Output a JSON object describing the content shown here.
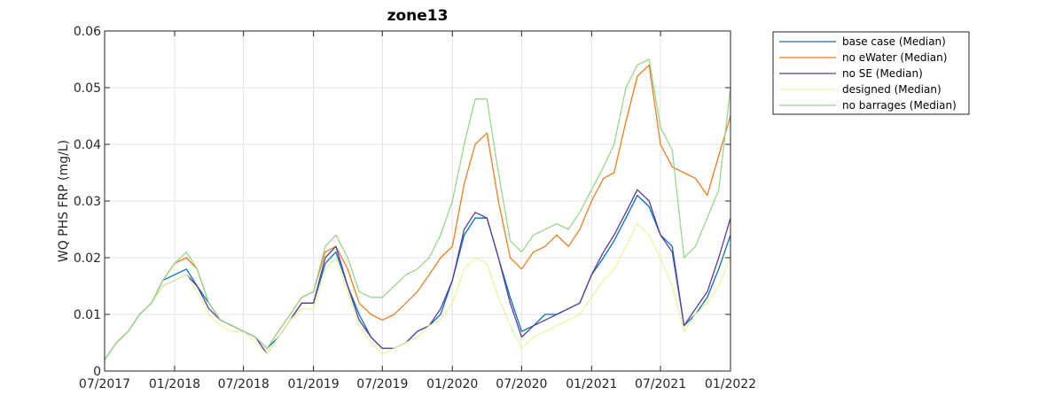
{
  "chart_data": {
    "type": "line",
    "title": "zone13",
    "xlabel": "",
    "ylabel": "WQ PHS FRP (mg/L)",
    "ylim": [
      0,
      0.06
    ],
    "yticks": [
      0,
      0.01,
      0.02,
      0.03,
      0.04,
      0.05,
      0.06
    ],
    "ytick_labels": [
      "0",
      "0.01",
      "0.02",
      "0.03",
      "0.04",
      "0.05",
      "0.06"
    ],
    "xlim": [
      "2017-07-01",
      "2022-01-01"
    ],
    "xticks": [
      "2017-07-01",
      "2018-01-01",
      "2018-07-01",
      "2019-01-01",
      "2019-07-01",
      "2020-01-01",
      "2020-07-01",
      "2021-01-01",
      "2021-07-01",
      "2022-01-01"
    ],
    "xtick_labels": [
      "07/2017",
      "01/2018",
      "07/2018",
      "01/2019",
      "07/2019",
      "01/2020",
      "07/2020",
      "01/2021",
      "07/2021",
      "01/2022"
    ],
    "grid": true,
    "legend_position": "outside-top-right",
    "x": [
      "2017-07-01",
      "2017-08-01",
      "2017-09-01",
      "2017-10-01",
      "2017-11-01",
      "2017-12-01",
      "2018-01-01",
      "2018-02-01",
      "2018-03-01",
      "2018-04-01",
      "2018-05-01",
      "2018-06-01",
      "2018-07-01",
      "2018-08-01",
      "2018-09-01",
      "2018-10-01",
      "2018-11-01",
      "2018-12-01",
      "2019-01-01",
      "2019-02-01",
      "2019-03-01",
      "2019-04-01",
      "2019-05-01",
      "2019-06-01",
      "2019-07-01",
      "2019-08-01",
      "2019-09-01",
      "2019-10-01",
      "2019-11-01",
      "2019-12-01",
      "2020-01-01",
      "2020-02-01",
      "2020-03-01",
      "2020-04-01",
      "2020-05-01",
      "2020-06-01",
      "2020-07-01",
      "2020-08-01",
      "2020-09-01",
      "2020-10-01",
      "2020-11-01",
      "2020-12-01",
      "2021-01-01",
      "2021-02-01",
      "2021-03-01",
      "2021-04-01",
      "2021-05-01",
      "2021-06-01",
      "2021-07-01",
      "2021-08-01",
      "2021-09-01",
      "2021-10-01",
      "2021-11-01",
      "2021-12-01",
      "2022-01-01"
    ],
    "series": [
      {
        "name": "base case (Median)",
        "color": "#0072BD",
        "values": [
          0.002,
          0.005,
          0.007,
          0.01,
          0.012,
          0.016,
          0.017,
          0.018,
          0.015,
          0.012,
          0.009,
          0.008,
          0.007,
          0.006,
          0.004,
          0.006,
          0.009,
          0.012,
          0.012,
          0.019,
          0.021,
          0.015,
          0.01,
          0.006,
          0.004,
          0.004,
          0.005,
          0.007,
          0.008,
          0.01,
          0.016,
          0.024,
          0.027,
          0.027,
          0.02,
          0.013,
          0.007,
          0.008,
          0.01,
          0.01,
          0.011,
          0.012,
          0.017,
          0.02,
          0.023,
          0.027,
          0.031,
          0.029,
          0.024,
          0.022,
          0.008,
          0.01,
          0.013,
          0.018,
          0.024
        ]
      },
      {
        "name": "no eWater (Median)",
        "color": "#ED7D1F",
        "values": [
          0.002,
          0.005,
          0.007,
          0.01,
          0.012,
          0.016,
          0.019,
          0.02,
          0.018,
          0.012,
          0.009,
          0.008,
          0.007,
          0.006,
          0.004,
          0.007,
          0.01,
          0.013,
          0.014,
          0.021,
          0.022,
          0.018,
          0.012,
          0.01,
          0.009,
          0.01,
          0.012,
          0.014,
          0.017,
          0.02,
          0.022,
          0.033,
          0.04,
          0.042,
          0.03,
          0.02,
          0.018,
          0.021,
          0.022,
          0.024,
          0.022,
          0.025,
          0.03,
          0.034,
          0.035,
          0.044,
          0.052,
          0.054,
          0.04,
          0.036,
          0.035,
          0.034,
          0.031,
          0.038,
          0.045
        ]
      },
      {
        "name": "no SE (Median)",
        "color": "#5E3C99",
        "values": [
          0.002,
          0.005,
          0.007,
          0.01,
          0.012,
          0.015,
          0.016,
          0.017,
          0.015,
          0.011,
          0.009,
          0.008,
          0.007,
          0.006,
          0.003,
          0.006,
          0.009,
          0.012,
          0.012,
          0.02,
          0.022,
          0.015,
          0.009,
          0.006,
          0.004,
          0.004,
          0.005,
          0.007,
          0.008,
          0.011,
          0.016,
          0.025,
          0.028,
          0.027,
          0.02,
          0.012,
          0.006,
          0.008,
          0.009,
          0.01,
          0.011,
          0.012,
          0.017,
          0.021,
          0.024,
          0.028,
          0.032,
          0.03,
          0.024,
          0.021,
          0.008,
          0.011,
          0.014,
          0.02,
          0.027
        ]
      },
      {
        "name": "designed (Median)",
        "color": "#E9F59C",
        "values": [
          0.002,
          0.005,
          0.007,
          0.01,
          0.012,
          0.015,
          0.016,
          0.017,
          0.014,
          0.01,
          0.008,
          0.007,
          0.007,
          0.005,
          0.003,
          0.006,
          0.009,
          0.011,
          0.011,
          0.018,
          0.02,
          0.014,
          0.008,
          0.005,
          0.003,
          0.004,
          0.005,
          0.006,
          0.008,
          0.009,
          0.012,
          0.018,
          0.02,
          0.019,
          0.013,
          0.008,
          0.004,
          0.006,
          0.007,
          0.008,
          0.009,
          0.01,
          0.013,
          0.016,
          0.018,
          0.022,
          0.026,
          0.024,
          0.02,
          0.015,
          0.007,
          0.01,
          0.012,
          0.015,
          0.02
        ]
      },
      {
        "name": "no barrages (Median)",
        "color": "#98D68B",
        "values": [
          0.002,
          0.005,
          0.007,
          0.01,
          0.012,
          0.016,
          0.019,
          0.021,
          0.018,
          0.012,
          0.009,
          0.008,
          0.007,
          0.006,
          0.004,
          0.007,
          0.01,
          0.013,
          0.014,
          0.022,
          0.024,
          0.02,
          0.014,
          0.013,
          0.013,
          0.015,
          0.017,
          0.018,
          0.02,
          0.024,
          0.03,
          0.04,
          0.048,
          0.048,
          0.035,
          0.023,
          0.021,
          0.024,
          0.025,
          0.026,
          0.025,
          0.028,
          0.032,
          0.036,
          0.04,
          0.05,
          0.054,
          0.055,
          0.043,
          0.039,
          0.02,
          0.022,
          0.027,
          0.032,
          0.05
        ]
      }
    ]
  }
}
